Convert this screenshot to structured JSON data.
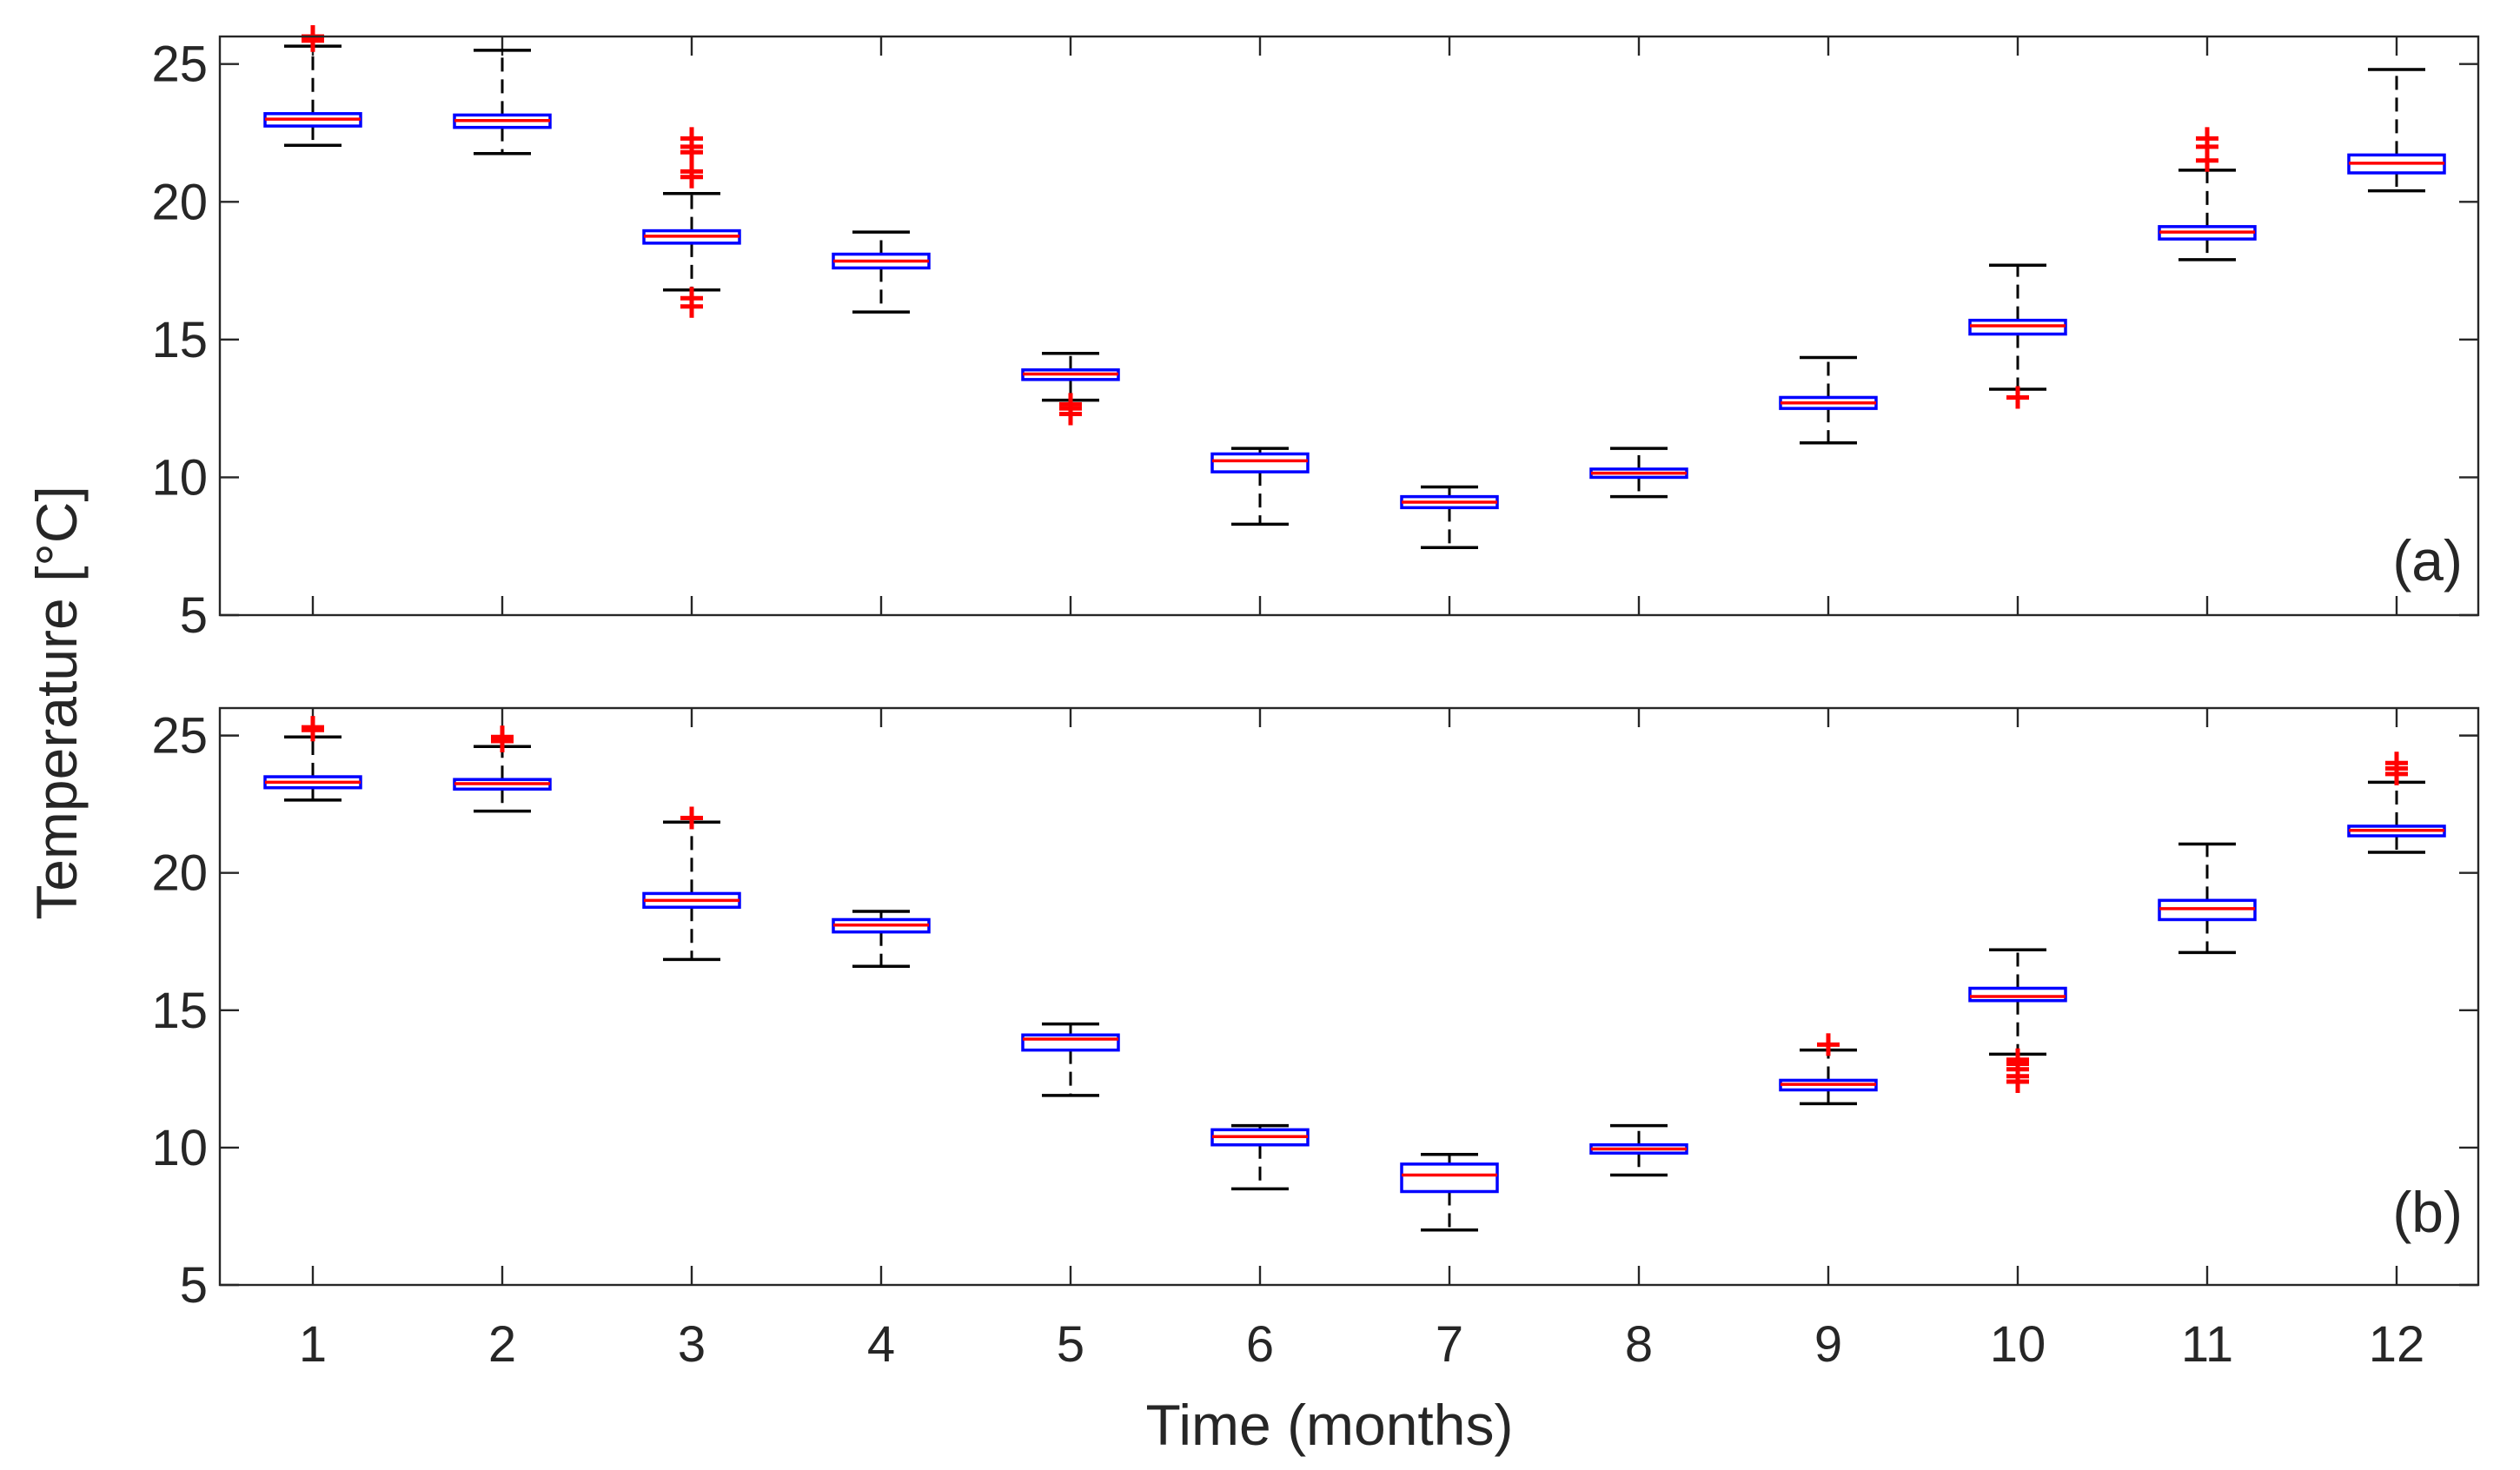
{
  "chart_data": [
    {
      "type": "box",
      "panel_label": "(a)",
      "ylabel": "Temperature [°C]",
      "xlabel": "",
      "xticks": [
        "1",
        "2",
        "3",
        "4",
        "5",
        "6",
        "7",
        "8",
        "9",
        "10",
        "11",
        "12"
      ],
      "yticks": [
        "5",
        "10",
        "15",
        "20",
        "25"
      ],
      "ylim": [
        5,
        26
      ],
      "boxes": [
        {
          "x": 1,
          "q1": 22.75,
          "median": 23.0,
          "q3": 23.2,
          "whisker_low": 22.05,
          "whisker_high": 25.65,
          "outliers": [
            25.85,
            26.0
          ]
        },
        {
          "x": 2,
          "q1": 22.7,
          "median": 22.95,
          "q3": 23.15,
          "whisker_low": 21.75,
          "whisker_high": 25.5,
          "outliers": []
        },
        {
          "x": 3,
          "q1": 18.5,
          "median": 18.75,
          "q3": 18.95,
          "whisker_low": 16.8,
          "whisker_high": 20.3,
          "outliers": [
            16.2,
            16.5,
            20.9,
            21.1,
            21.8,
            22.0,
            22.3
          ]
        },
        {
          "x": 4,
          "q1": 17.6,
          "median": 17.85,
          "q3": 18.1,
          "whisker_low": 16.0,
          "whisker_high": 18.9,
          "outliers": []
        },
        {
          "x": 5,
          "q1": 13.55,
          "median": 13.75,
          "q3": 13.9,
          "whisker_low": 12.8,
          "whisker_high": 14.5,
          "outliers": [
            12.3,
            12.5,
            12.65
          ]
        },
        {
          "x": 6,
          "q1": 10.2,
          "median": 10.6,
          "q3": 10.85,
          "whisker_low": 8.3,
          "whisker_high": 11.05,
          "outliers": []
        },
        {
          "x": 7,
          "q1": 8.9,
          "median": 9.1,
          "q3": 9.3,
          "whisker_low": 7.45,
          "whisker_high": 9.65,
          "outliers": []
        },
        {
          "x": 8,
          "q1": 10.0,
          "median": 10.15,
          "q3": 10.3,
          "whisker_low": 9.3,
          "whisker_high": 11.05,
          "outliers": []
        },
        {
          "x": 9,
          "q1": 12.5,
          "median": 12.7,
          "q3": 12.9,
          "whisker_low": 11.25,
          "whisker_high": 14.35,
          "outliers": []
        },
        {
          "x": 10,
          "q1": 15.2,
          "median": 15.5,
          "q3": 15.7,
          "whisker_low": 13.2,
          "whisker_high": 17.7,
          "outliers": [
            12.9
          ]
        },
        {
          "x": 11,
          "q1": 18.65,
          "median": 18.9,
          "q3": 19.1,
          "whisker_low": 17.9,
          "whisker_high": 21.15,
          "outliers": [
            21.5,
            22.0,
            22.3
          ]
        },
        {
          "x": 12,
          "q1": 21.05,
          "median": 21.4,
          "q3": 21.7,
          "whisker_low": 20.4,
          "whisker_high": 24.8,
          "outliers": []
        }
      ]
    },
    {
      "type": "box",
      "panel_label": "(b)",
      "ylabel": "Temperature [°C]",
      "xlabel": "Time (months)",
      "xticks": [
        "1",
        "2",
        "3",
        "4",
        "5",
        "6",
        "7",
        "8",
        "9",
        "10",
        "11",
        "12"
      ],
      "yticks": [
        "5",
        "10",
        "15",
        "20",
        "25"
      ],
      "ylim": [
        5,
        26
      ],
      "boxes": [
        {
          "x": 1,
          "q1": 23.1,
          "median": 23.3,
          "q3": 23.5,
          "whisker_low": 22.65,
          "whisker_high": 24.95,
          "outliers": [
            25.2,
            25.3
          ]
        },
        {
          "x": 2,
          "q1": 23.05,
          "median": 23.25,
          "q3": 23.4,
          "whisker_low": 22.25,
          "whisker_high": 24.6,
          "outliers": [
            24.8,
            24.95
          ]
        },
        {
          "x": 3,
          "q1": 18.75,
          "median": 19.0,
          "q3": 19.25,
          "whisker_low": 16.85,
          "whisker_high": 21.85,
          "outliers": [
            22.0
          ]
        },
        {
          "x": 4,
          "q1": 17.85,
          "median": 18.1,
          "q3": 18.3,
          "whisker_low": 16.6,
          "whisker_high": 18.6,
          "outliers": []
        },
        {
          "x": 5,
          "q1": 13.55,
          "median": 13.95,
          "q3": 14.1,
          "whisker_low": 11.9,
          "whisker_high": 14.5,
          "outliers": []
        },
        {
          "x": 6,
          "q1": 10.1,
          "median": 10.4,
          "q3": 10.65,
          "whisker_low": 8.5,
          "whisker_high": 10.8,
          "outliers": []
        },
        {
          "x": 7,
          "q1": 8.4,
          "median": 9.0,
          "q3": 9.4,
          "whisker_low": 7.0,
          "whisker_high": 9.75,
          "outliers": []
        },
        {
          "x": 8,
          "q1": 9.8,
          "median": 9.95,
          "q3": 10.1,
          "whisker_low": 9.0,
          "whisker_high": 10.8,
          "outliers": []
        },
        {
          "x": 9,
          "q1": 12.1,
          "median": 12.3,
          "q3": 12.45,
          "whisker_low": 11.6,
          "whisker_high": 13.55,
          "outliers": [
            13.75
          ]
        },
        {
          "x": 10,
          "q1": 15.35,
          "median": 15.5,
          "q3": 15.8,
          "whisker_low": 13.4,
          "whisker_high": 17.2,
          "outliers": [
            12.4,
            12.6,
            12.85,
            13.05,
            13.2
          ]
        },
        {
          "x": 11,
          "q1": 18.3,
          "median": 18.7,
          "q3": 19.0,
          "whisker_low": 17.1,
          "whisker_high": 21.05,
          "outliers": []
        },
        {
          "x": 12,
          "q1": 21.35,
          "median": 21.55,
          "q3": 21.7,
          "whisker_low": 20.75,
          "whisker_high": 23.3,
          "outliers": [
            23.6,
            23.8,
            24.0
          ]
        }
      ]
    }
  ],
  "colors": {
    "box": "#0000ff",
    "median": "#ff0000",
    "whisker": "#000000",
    "outlier": "#ff0000",
    "axis": "#262626"
  }
}
